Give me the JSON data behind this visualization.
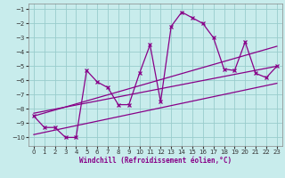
{
  "xlabel": "Windchill (Refroidissement éolien,°C)",
  "bg_color": "#c8ecec",
  "line_color": "#880088",
  "grid_color": "#99cccc",
  "xlim": [
    -0.5,
    23.5
  ],
  "ylim": [
    -10.6,
    -0.6
  ],
  "yticks": [
    -1,
    -2,
    -3,
    -4,
    -5,
    -6,
    -7,
    -8,
    -9,
    -10
  ],
  "xticks": [
    0,
    1,
    2,
    3,
    4,
    5,
    6,
    7,
    8,
    9,
    10,
    11,
    12,
    13,
    14,
    15,
    16,
    17,
    18,
    19,
    20,
    21,
    22,
    23
  ],
  "data_x": [
    0,
    1,
    2,
    3,
    4,
    5,
    6,
    7,
    8,
    9,
    10,
    11,
    12,
    13,
    14,
    15,
    16,
    17,
    18,
    19,
    20,
    21,
    22,
    23
  ],
  "data_y": [
    -8.5,
    -9.3,
    -9.3,
    -10.0,
    -10.0,
    -5.3,
    -6.1,
    -6.5,
    -7.7,
    -7.7,
    -5.5,
    -3.5,
    -7.5,
    -2.2,
    -1.2,
    -1.6,
    -2.0,
    -3.0,
    -5.2,
    -5.3,
    -3.3,
    -5.5,
    -5.8,
    -5.0
  ],
  "trend1_x": [
    0,
    23
  ],
  "trend1_y": [
    -8.5,
    -3.6
  ],
  "trend2_x": [
    0,
    23
  ],
  "trend2_y": [
    -8.3,
    -5.0
  ],
  "trend3_x": [
    0,
    23
  ],
  "trend3_y": [
    -9.8,
    -6.2
  ]
}
